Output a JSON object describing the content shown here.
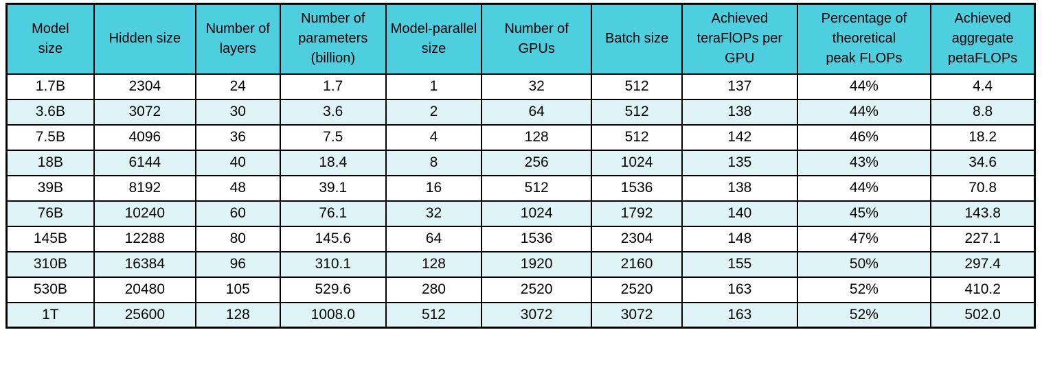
{
  "colors": {
    "header_bg": "#4ECFE0",
    "stripe_bg": "#DFF4F7",
    "row_bg": "#FFFFFF",
    "border": "#000000",
    "text": "#000000"
  },
  "chart_data": {
    "type": "table",
    "columns": [
      "Model\nsize",
      "Hidden size",
      "Number of\nlayers",
      "Number of\nparameters\n(billion)",
      "Model-parallel\nsize",
      "Number of\nGPUs",
      "Batch size",
      "Achieved\nteraFlOPs per\nGPU",
      "Percentage of\ntheoretical\npeak FLOPs",
      "Achieved\naggregate\npetaFLOPs"
    ],
    "rows": [
      [
        "1.7B",
        "2304",
        "24",
        "1.7",
        "1",
        "32",
        "512",
        "137",
        "44%",
        "4.4"
      ],
      [
        "3.6B",
        "3072",
        "30",
        "3.6",
        "2",
        "64",
        "512",
        "138",
        "44%",
        "8.8"
      ],
      [
        "7.5B",
        "4096",
        "36",
        "7.5",
        "4",
        "128",
        "512",
        "142",
        "46%",
        "18.2"
      ],
      [
        "18B",
        "6144",
        "40",
        "18.4",
        "8",
        "256",
        "1024",
        "135",
        "43%",
        "34.6"
      ],
      [
        "39B",
        "8192",
        "48",
        "39.1",
        "16",
        "512",
        "1536",
        "138",
        "44%",
        "70.8"
      ],
      [
        "76B",
        "10240",
        "60",
        "76.1",
        "32",
        "1024",
        "1792",
        "140",
        "45%",
        "143.8"
      ],
      [
        "145B",
        "12288",
        "80",
        "145.6",
        "64",
        "1536",
        "2304",
        "148",
        "47%",
        "227.1"
      ],
      [
        "310B",
        "16384",
        "96",
        "310.1",
        "128",
        "1920",
        "2160",
        "155",
        "50%",
        "297.4"
      ],
      [
        "530B",
        "20480",
        "105",
        "529.6",
        "280",
        "2520",
        "2520",
        "163",
        "52%",
        "410.2"
      ],
      [
        "1T",
        "25600",
        "128",
        "1008.0",
        "512",
        "3072",
        "3072",
        "163",
        "52%",
        "502.0"
      ]
    ]
  }
}
